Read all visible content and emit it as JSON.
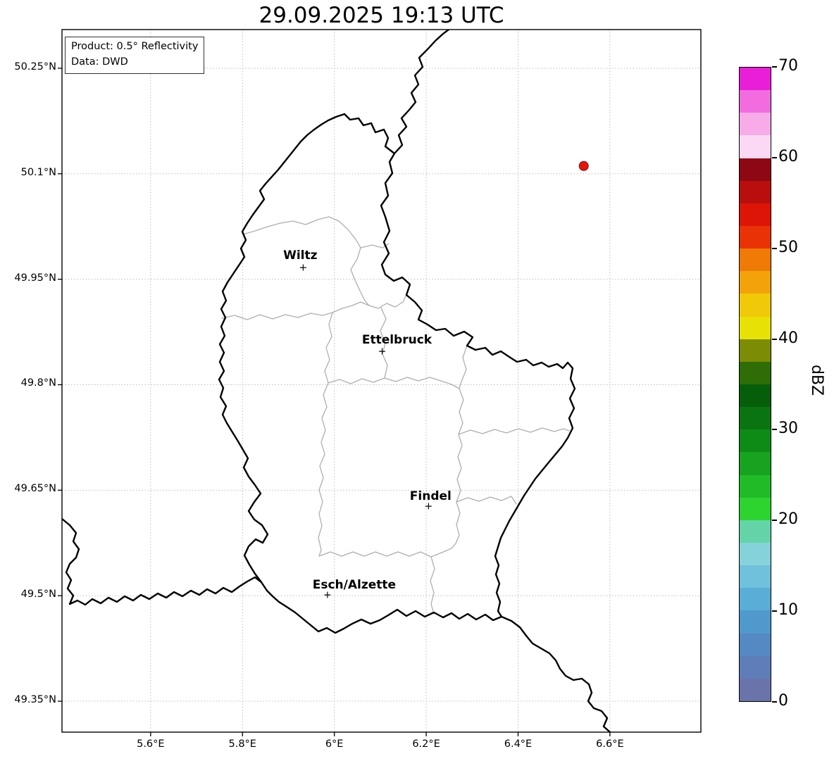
{
  "title": "29.09.2025 19:13 UTC",
  "info_box": {
    "line1": "Product: 0.5° Reflectivity",
    "line2": "Data: DWD"
  },
  "map": {
    "lon_range": [
      5.407,
      6.798
    ],
    "lat_range": [
      49.306,
      50.305
    ],
    "lon_ticks": [
      {
        "label": "5.6°E",
        "value": 5.6
      },
      {
        "label": "5.8°E",
        "value": 5.8
      },
      {
        "label": "6°E",
        "value": 6.0
      },
      {
        "label": "6.2°E",
        "value": 6.2
      },
      {
        "label": "6.4°E",
        "value": 6.4
      },
      {
        "label": "6.6°E",
        "value": 6.6
      }
    ],
    "lat_ticks": [
      {
        "label": "50.25°N",
        "value": 50.25
      },
      {
        "label": "50.1°N",
        "value": 50.1
      },
      {
        "label": "49.95°N",
        "value": 49.95
      },
      {
        "label": "49.8°N",
        "value": 49.8
      },
      {
        "label": "49.65°N",
        "value": 49.65
      },
      {
        "label": "49.5°N",
        "value": 49.5
      },
      {
        "label": "49.35°N",
        "value": 49.35
      }
    ],
    "cities": [
      {
        "name": "Wiltz",
        "lon": 5.932,
        "lat": 49.966,
        "label_offset": [
          -4,
          -18
        ]
      },
      {
        "name": "Ettelbruck",
        "lon": 6.104,
        "lat": 49.847,
        "label_offset": [
          21,
          -17
        ]
      },
      {
        "name": "Findel",
        "lon": 6.205,
        "lat": 49.626,
        "label_offset": [
          3,
          -15
        ]
      },
      {
        "name": "Esch/Alzette",
        "lon": 5.985,
        "lat": 49.5,
        "label_offset": [
          38,
          -15
        ]
      }
    ],
    "radar_echo": {
      "lon": 6.543,
      "lat": 50.111,
      "fill": "#e31507",
      "edge": "#8f0713",
      "radius": 6.5
    }
  },
  "colorbar": {
    "label": "dBZ",
    "min": 0,
    "max": 70,
    "ticks": [
      {
        "label": "70",
        "value": 70
      },
      {
        "label": "60",
        "value": 60
      },
      {
        "label": "50",
        "value": 50
      },
      {
        "label": "40",
        "value": 40
      },
      {
        "label": "30",
        "value": 30
      },
      {
        "label": "20",
        "value": 20
      },
      {
        "label": "10",
        "value": 10
      },
      {
        "label": "0",
        "value": 0
      }
    ],
    "colors_top_to_bottom": [
      "#e91fd8",
      "#f26ce0",
      "#f8abe9",
      "#fbd9f4",
      "#8e0714",
      "#b90e0e",
      "#dd1507",
      "#e93306",
      "#ef7a05",
      "#f3a309",
      "#f0c908",
      "#e8e106",
      "#7c8c04",
      "#2f6d06",
      "#065e0b",
      "#0a7411",
      "#0e8b17",
      "#17a31f",
      "#21bb27",
      "#2dd32f",
      "#64d4a8",
      "#86d2da",
      "#6fc1dc",
      "#5aadd6",
      "#5099cd",
      "#5489c3",
      "#5f7db8",
      "#6b73ab"
    ]
  }
}
